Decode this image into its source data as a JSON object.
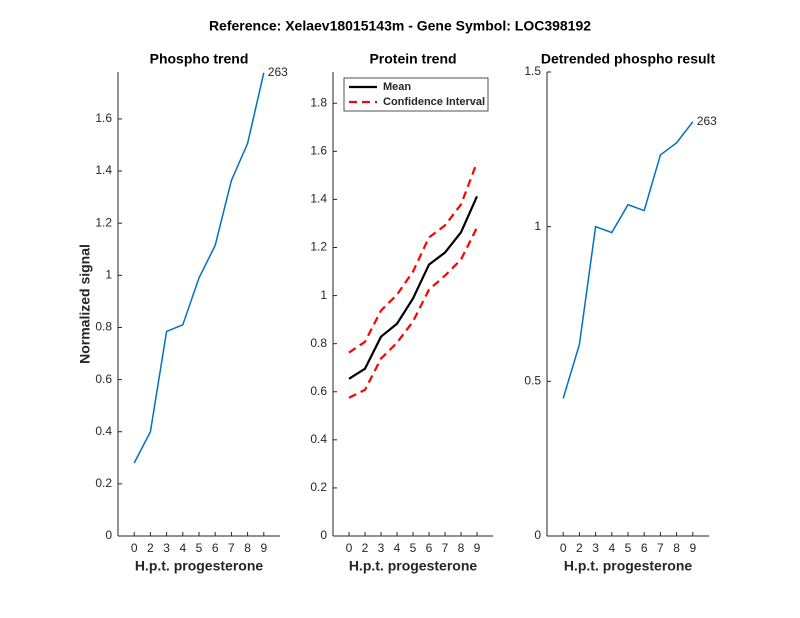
{
  "title": "Reference:  Xelaev18015143m - Gene Symbol:  LOC398192",
  "chart_data": [
    {
      "type": "line",
      "title": "Phospho trend",
      "ylabel": "Normalized signal",
      "xlabel": "H.p.t. progesterone",
      "categories": [
        "0",
        "2",
        "3",
        "4",
        "5",
        "6",
        "7",
        "8",
        "9"
      ],
      "series": [
        {
          "color": "#0072bd",
          "values": [
            0.28,
            0.4,
            0.785,
            0.81,
            0.99,
            1.115,
            1.364,
            1.506,
            1.777
          ]
        }
      ],
      "annotation": "263",
      "ylim": [
        0,
        1.78
      ],
      "yticks": [
        0,
        0.2,
        0.4,
        0.6,
        0.8,
        1,
        1.2,
        1.4,
        1.6
      ]
    },
    {
      "type": "band-line",
      "title": "Protein trend",
      "xlabel": "H.p.t. progesterone",
      "categories": [
        "0",
        "2",
        "3",
        "4",
        "5",
        "6",
        "7",
        "8",
        "9"
      ],
      "series": [
        {
          "name": "Mean",
          "color": "#000000",
          "values": [
            0.654,
            0.696,
            0.829,
            0.883,
            0.988,
            1.129,
            1.179,
            1.263,
            1.413
          ]
        },
        {
          "name": "Confidence Interval",
          "color": "#ff0000",
          "dashed": true,
          "upper": [
            0.763,
            0.808,
            0.938,
            1.004,
            1.1,
            1.242,
            1.292,
            1.379,
            1.554
          ],
          "lower": [
            0.575,
            0.608,
            0.738,
            0.804,
            0.892,
            1.025,
            1.083,
            1.15,
            1.283
          ]
        }
      ],
      "legend": "upper-left",
      "ylim": [
        0,
        1.93
      ],
      "yticks": [
        0,
        0.2,
        0.4,
        0.6,
        0.8,
        1,
        1.2,
        1.4,
        1.6,
        1.8
      ]
    },
    {
      "type": "line",
      "title": "Detrended phospho result",
      "xlabel": "H.p.t. progesterone",
      "categories": [
        "0",
        "2",
        "3",
        "4",
        "5",
        "6",
        "7",
        "8",
        "9"
      ],
      "series": [
        {
          "color": "#0072bd",
          "values": [
            0.445,
            0.619,
            1.0,
            0.981,
            1.071,
            1.052,
            1.232,
            1.271,
            1.339
          ]
        }
      ],
      "annotation": "263",
      "ylim": [
        0,
        1.5
      ],
      "yticks": [
        0,
        0.5,
        1,
        1.5
      ]
    }
  ]
}
